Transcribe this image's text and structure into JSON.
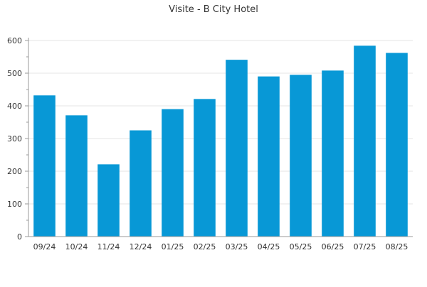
{
  "chart_data": {
    "type": "bar",
    "title": "Visite - B City Hotel",
    "xlabel": "",
    "ylabel": "",
    "categories": [
      "09/24",
      "10/24",
      "11/24",
      "12/24",
      "01/25",
      "02/25",
      "03/25",
      "04/25",
      "05/25",
      "06/25",
      "07/25",
      "08/25"
    ],
    "values": [
      432,
      371,
      221,
      325,
      390,
      421,
      541,
      490,
      495,
      508,
      584,
      562
    ],
    "ylim": [
      0,
      600
    ],
    "yticks": [
      0,
      100,
      200,
      300,
      400,
      500,
      600
    ],
    "grid": true,
    "legend": "none",
    "bar_color": "#0898d6",
    "axis_color": "#999999",
    "grid_color": "#e4e4e4",
    "text_color": "#333333"
  }
}
